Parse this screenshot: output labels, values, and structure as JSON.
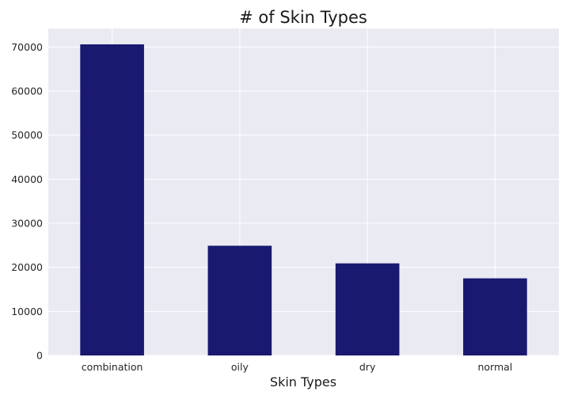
{
  "chart_data": {
    "type": "bar",
    "title": "# of Skin Types",
    "xlabel": "Skin Types",
    "ylabel": "",
    "categories": [
      "combination",
      "oily",
      "dry",
      "normal"
    ],
    "values": [
      70600,
      24900,
      20900,
      17500
    ],
    "ylim": [
      0,
      74200
    ],
    "yticks": [
      0,
      10000,
      20000,
      30000,
      40000,
      50000,
      60000,
      70000
    ],
    "grid": true,
    "colors": {
      "bar": "#191970",
      "plot_bg": "#eaeaf2",
      "grid": "#ffffff"
    }
  }
}
